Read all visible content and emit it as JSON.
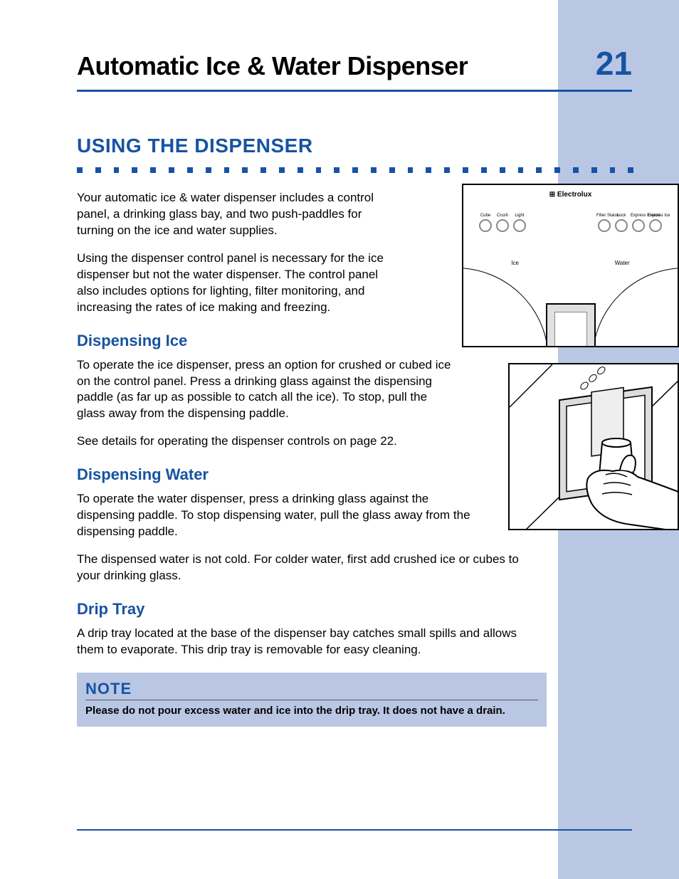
{
  "colors": {
    "primary_blue": "#1753a2",
    "sidebar_blue": "#b9c7e4",
    "text": "#000000",
    "figure_border": "#000000",
    "button_circle": "#888888"
  },
  "typography": {
    "page_title_size": 36,
    "page_num_size": 46,
    "section_title_size": 28,
    "sub_title_size": 22,
    "body_size": 17,
    "note_title_size": 22,
    "note_text_size": 15
  },
  "header": {
    "title": "Automatic Ice & Water Dispenser",
    "page_number": "21"
  },
  "section": {
    "title": "USING THE DISPENSER",
    "p1": "Your automatic ice & water dispenser includes a control panel, a drinking glass bay, and two push-paddles for turning on the ice and water supplies.",
    "p2": "Using the dispenser control panel is necessary for the ice dispenser but not the water dispenser. The control panel also includes options for lighting, filter monitoring, and increasing the rates of ice making and freezing."
  },
  "ice": {
    "title": "Dispensing Ice",
    "p1": "To operate the ice dispenser, press an option for crushed or cubed ice on the control panel. Press a drinking glass against the dispensing paddle (as far up as possible to catch all the ice). To stop, pull the glass away from the dispensing paddle.",
    "p2": "See details for operating the dispenser controls on page 22."
  },
  "water": {
    "title": "Dispensing Water",
    "p1": "To operate the water dispenser, press a drinking glass against the dispensing paddle. To stop dispensing water, pull the glass away from the dispensing paddle.",
    "p2": "The dispensed water is not cold. For colder water, first add crushed ice or cubes to your drinking glass."
  },
  "drip": {
    "title": "Drip Tray",
    "p1": "A drip tray located at the base of the dispenser bay catches small spills and allows them to evaporate. This drip tray is removable for easy cleaning."
  },
  "note": {
    "title": "NOTE",
    "text": "Please do not pour excess water and ice into the drip tray. It does not have a drain."
  },
  "figure1": {
    "brand": "⊞ Electrolux",
    "left_buttons": [
      "Cube",
      "Crush",
      "Light"
    ],
    "right_buttons": [
      "Filter Status",
      "Lock",
      "Express Freeze",
      "Express Ice"
    ],
    "labels": {
      "ice": "Ice",
      "water": "Water"
    }
  },
  "dotted_rule": {
    "count": 31,
    "dot_size": 8,
    "gap": 18
  }
}
